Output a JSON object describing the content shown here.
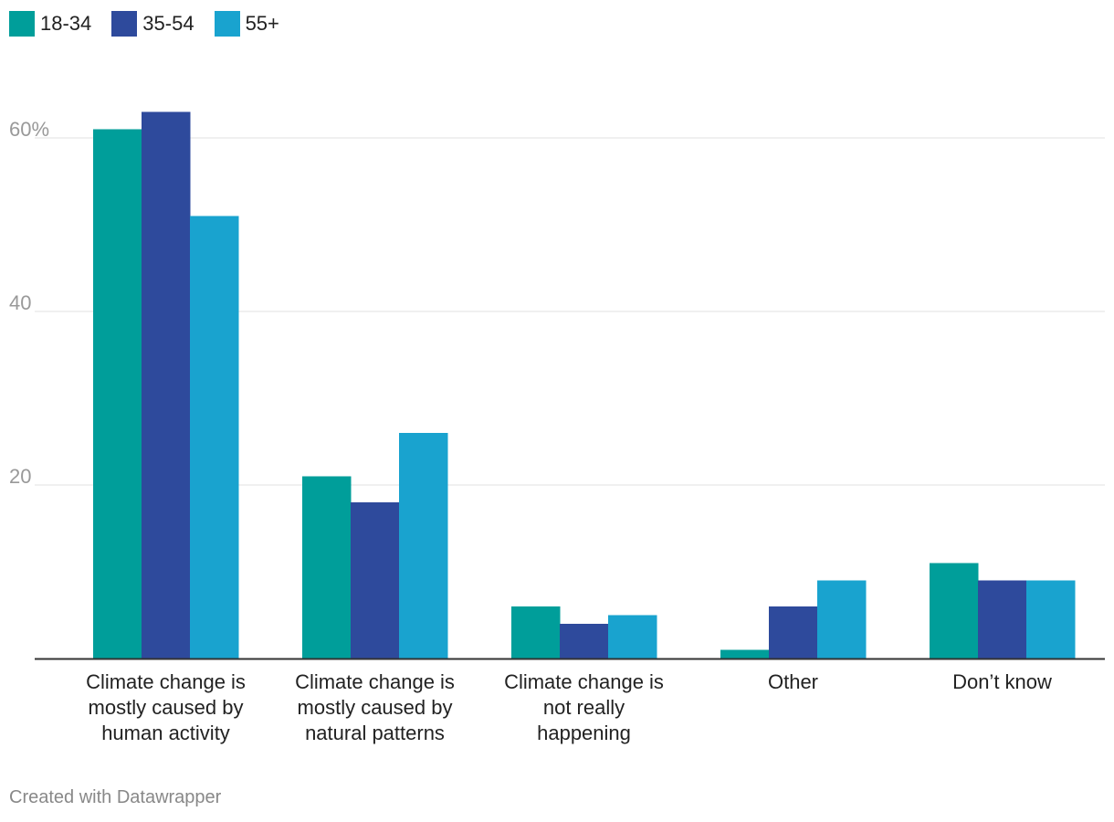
{
  "chart_data": {
    "type": "bar",
    "categories": [
      [
        "Climate change is",
        "mostly caused by",
        "human activity"
      ],
      [
        "Climate change is",
        "mostly caused by",
        "natural patterns"
      ],
      [
        "Climate change is",
        "not really",
        "happening"
      ],
      [
        "Other"
      ],
      [
        "Don’t know"
      ]
    ],
    "series": [
      {
        "name": "18-34",
        "color": "#009e9a",
        "values": [
          61,
          21,
          6,
          1,
          11
        ]
      },
      {
        "name": "35-54",
        "color": "#2e4a9c",
        "values": [
          63,
          18,
          4,
          6,
          9
        ]
      },
      {
        "name": "55+",
        "color": "#19a3cf",
        "values": [
          51,
          26,
          5,
          9,
          9
        ]
      }
    ],
    "ylim": [
      0,
      68
    ],
    "yticks": [
      {
        "value": 20,
        "label": "20"
      },
      {
        "value": 40,
        "label": "40"
      },
      {
        "value": 60,
        "label": "60%"
      }
    ],
    "grid": true,
    "legend": "top-left"
  },
  "credit": "Created with Datawrapper"
}
